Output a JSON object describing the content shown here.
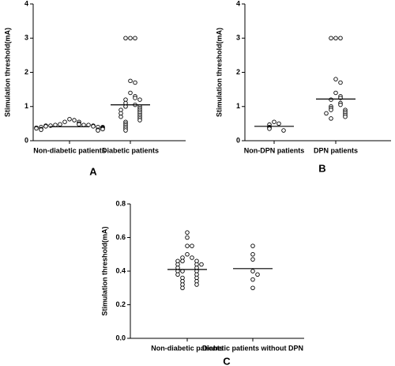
{
  "chart_data": [
    {
      "type": "dotplot",
      "panel": "A",
      "ylabel": "Stimulation threshold(mA)",
      "categories": [
        "Non-diabetic patients",
        "Diabetic patients"
      ],
      "groups": [
        {
          "values": [
            0.63,
            0.6,
            0.55,
            0.55,
            0.5,
            0.48,
            0.48,
            0.46,
            0.46,
            0.46,
            0.44,
            0.44,
            0.44,
            0.42,
            0.42,
            0.4,
            0.4,
            0.4,
            0.38,
            0.38,
            0.36,
            0.36,
            0.34,
            0.34,
            0.32,
            0.32,
            0.3
          ],
          "mean": 0.41
        },
        {
          "values": [
            3,
            3,
            3,
            1.75,
            1.7,
            1.4,
            1.3,
            1.25,
            1.2,
            1.2,
            1.1,
            1.05,
            1.0,
            1.0,
            0.95,
            0.9,
            0.9,
            0.85,
            0.8,
            0.8,
            0.75,
            0.7,
            0.7,
            0.65,
            0.6,
            0.55,
            0.5,
            0.45,
            0.4,
            0.35,
            0.3
          ],
          "mean": 1.05
        }
      ],
      "ylim": [
        0,
        4
      ],
      "yticks": [
        0,
        1,
        2,
        3,
        4
      ]
    },
    {
      "type": "dotplot",
      "panel": "B",
      "ylabel": "Stimulation threshold(mA)",
      "categories": [
        "Non-DPN patients",
        "DPN patients"
      ],
      "groups": [
        {
          "values": [
            0.55,
            0.5,
            0.47,
            0.4,
            0.38,
            0.35,
            0.3
          ],
          "mean": 0.42
        },
        {
          "values": [
            3,
            3,
            3,
            1.8,
            1.7,
            1.4,
            1.3,
            1.25,
            1.2,
            1.1,
            1.05,
            1.0,
            0.95,
            0.9,
            0.9,
            0.85,
            0.8,
            0.8,
            0.75,
            0.7,
            0.65
          ],
          "mean": 1.22
        }
      ],
      "ylim": [
        0,
        4
      ],
      "yticks": [
        0,
        1,
        2,
        3,
        4
      ]
    },
    {
      "type": "dotplot",
      "panel": "C",
      "ylabel": "Stimulation threshold(mA)",
      "categories": [
        "Non-diabetic patients",
        "Diabetic patients without DPN"
      ],
      "groups": [
        {
          "values": [
            0.63,
            0.6,
            0.55,
            0.55,
            0.5,
            0.48,
            0.48,
            0.46,
            0.46,
            0.46,
            0.44,
            0.44,
            0.44,
            0.42,
            0.42,
            0.4,
            0.4,
            0.4,
            0.38,
            0.38,
            0.36,
            0.36,
            0.34,
            0.34,
            0.32,
            0.32,
            0.3
          ],
          "mean": 0.41
        },
        {
          "values": [
            0.55,
            0.5,
            0.47,
            0.4,
            0.38,
            0.35,
            0.3
          ],
          "mean": 0.415
        }
      ],
      "ylim": [
        0,
        0.8
      ],
      "yticks": [
        {
          "value": 0,
          "label": "0.0"
        },
        0.2,
        0.4,
        0.6,
        0.8
      ]
    }
  ]
}
